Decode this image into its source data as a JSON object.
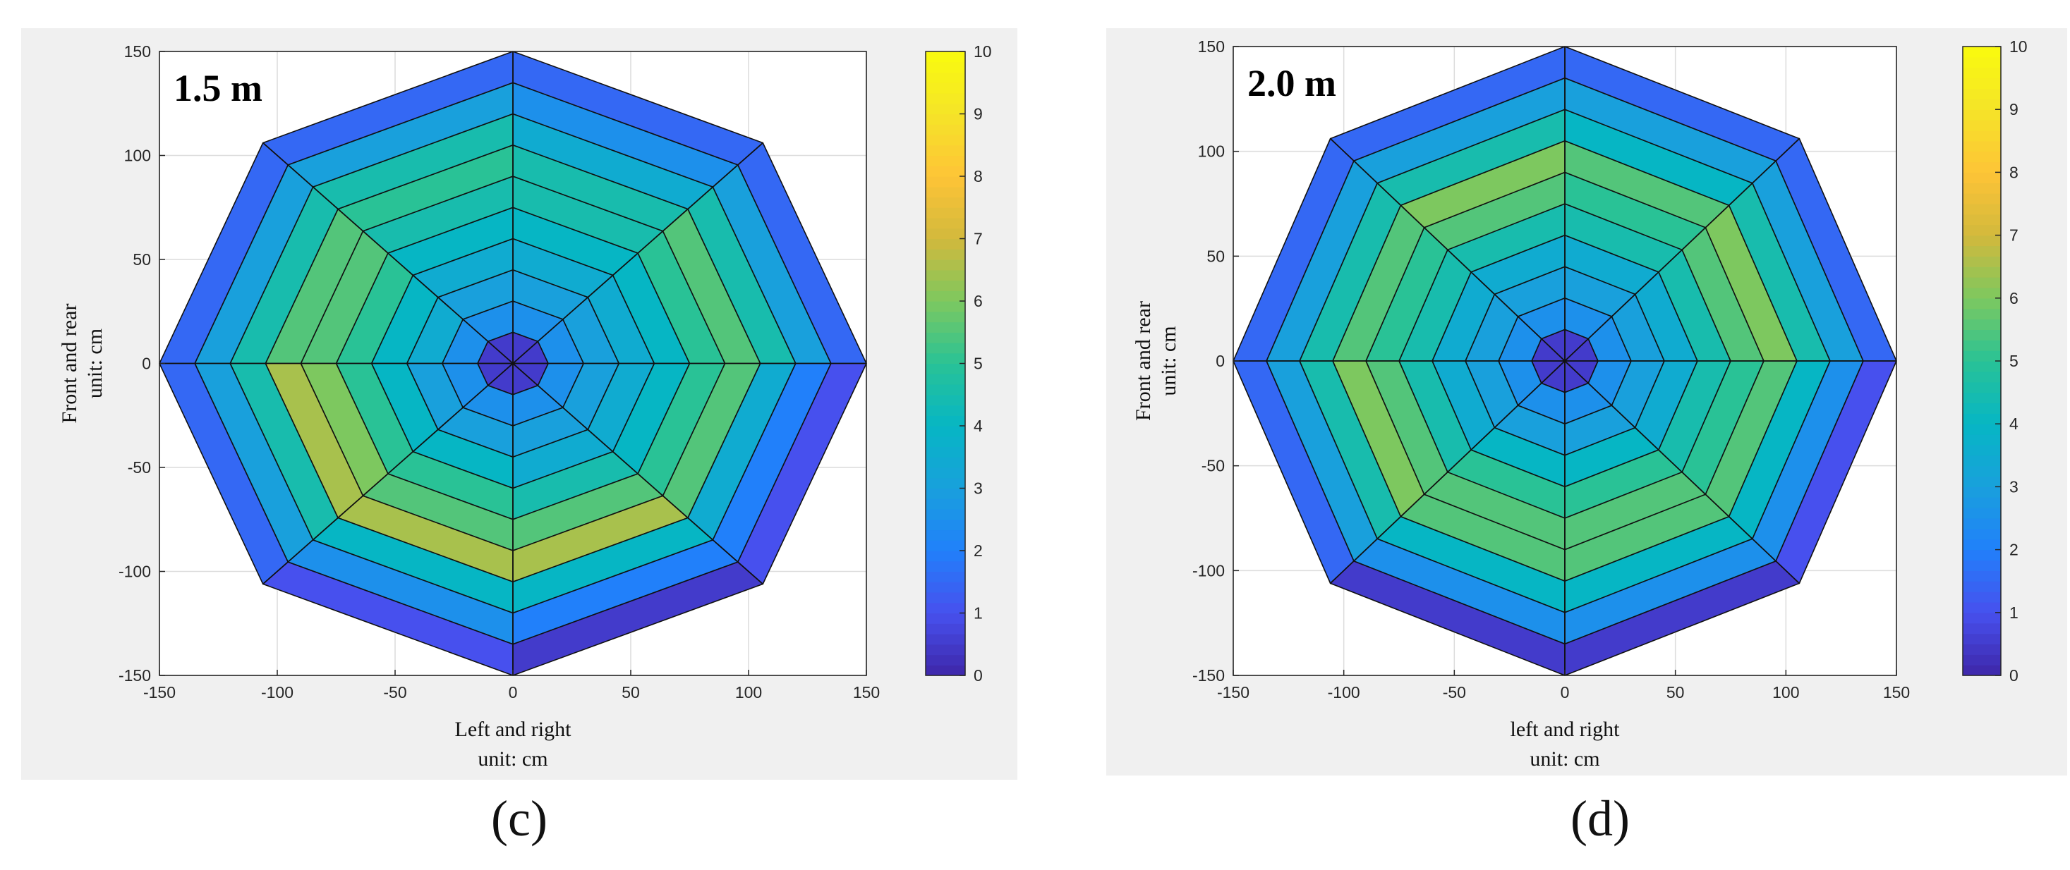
{
  "chart_data": [
    {
      "type": "polar-contour",
      "panel_label": "(c)",
      "annotation": "1.5 m",
      "xlabel_line1": "Left and right",
      "xlabel_line2": "unit: cm",
      "ylabel_line1": "Front and rear",
      "ylabel_line2": "unit: cm",
      "xlim": [
        -150,
        150
      ],
      "ylim": [
        -150,
        150
      ],
      "x_ticks": [
        -150,
        -100,
        -50,
        0,
        50,
        100,
        150
      ],
      "y_ticks": [
        -150,
        -100,
        -50,
        0,
        50,
        100,
        150
      ],
      "colorbar_range": [
        0,
        10
      ],
      "colorbar_ticks": [
        0,
        1,
        2,
        3,
        4,
        5,
        6,
        7,
        8,
        9,
        10
      ],
      "directions_deg": [
        0,
        45,
        90,
        135,
        180,
        225,
        270,
        315
      ],
      "ring_radii_cm": [
        0,
        15,
        30,
        45,
        60,
        75,
        90,
        105,
        120,
        135,
        150
      ],
      "values": [
        [
          0.5,
          2.5,
          3.0,
          3.5,
          4.0,
          5.0,
          5.5,
          4.5,
          3.0,
          1.5
        ],
        [
          0.5,
          2.5,
          3.0,
          3.5,
          4.0,
          4.5,
          4.5,
          3.5,
          2.5,
          1.5
        ],
        [
          0.5,
          2.5,
          3.0,
          3.5,
          4.0,
          4.5,
          5.0,
          4.5,
          3.0,
          1.5
        ],
        [
          0.5,
          2.5,
          3.5,
          4.0,
          5.0,
          5.5,
          5.5,
          4.5,
          3.0,
          1.5
        ],
        [
          0.5,
          2.5,
          3.0,
          4.0,
          5.0,
          6.0,
          6.5,
          4.5,
          3.0,
          1.5
        ],
        [
          0.5,
          2.5,
          3.0,
          4.0,
          5.0,
          5.5,
          6.5,
          4.0,
          2.5,
          1.0
        ],
        [
          0.5,
          2.5,
          3.0,
          3.5,
          4.5,
          5.5,
          6.5,
          4.0,
          2.0,
          0.5
        ],
        [
          0.5,
          2.5,
          3.0,
          3.5,
          4.0,
          5.0,
          5.5,
          3.5,
          2.0,
          1.0
        ]
      ]
    },
    {
      "type": "polar-contour",
      "panel_label": "(d)",
      "annotation": "2.0 m",
      "xlabel_line1": "left and right",
      "xlabel_line2": "unit: cm",
      "ylabel_line1": "Front and rear",
      "ylabel_line2": "unit: cm",
      "xlim": [
        -150,
        150
      ],
      "ylim": [
        -150,
        150
      ],
      "x_ticks": [
        -150,
        -100,
        -50,
        0,
        50,
        100,
        150
      ],
      "y_ticks": [
        -150,
        -100,
        -50,
        0,
        50,
        100,
        150
      ],
      "colorbar_range": [
        0,
        10
      ],
      "colorbar_ticks": [
        0,
        1,
        2,
        3,
        4,
        5,
        6,
        7,
        8,
        9,
        10
      ],
      "directions_deg": [
        0,
        45,
        90,
        135,
        180,
        225,
        270,
        315
      ],
      "ring_radii_cm": [
        0,
        15,
        30,
        45,
        60,
        75,
        90,
        105,
        120,
        135,
        150
      ],
      "values": [
        [
          0.5,
          2.5,
          3.0,
          3.5,
          4.5,
          5.5,
          6.0,
          4.5,
          3.0,
          1.5
        ],
        [
          0.5,
          2.5,
          3.0,
          3.5,
          4.5,
          5.0,
          5.5,
          4.0,
          3.0,
          1.5
        ],
        [
          0.5,
          2.5,
          3.0,
          3.5,
          4.5,
          5.5,
          6.0,
          4.5,
          3.0,
          1.5
        ],
        [
          0.5,
          2.5,
          3.0,
          3.5,
          4.5,
          5.0,
          5.5,
          4.5,
          3.0,
          1.5
        ],
        [
          0.5,
          2.5,
          3.0,
          3.5,
          4.5,
          5.5,
          6.0,
          4.5,
          3.0,
          1.5
        ],
        [
          0.5,
          2.5,
          3.0,
          4.0,
          5.0,
          5.5,
          5.5,
          4.0,
          2.5,
          0.5
        ],
        [
          0.5,
          2.5,
          3.0,
          4.0,
          5.0,
          5.5,
          5.5,
          4.0,
          2.5,
          0.5
        ],
        [
          0.5,
          2.5,
          3.0,
          3.5,
          4.5,
          5.0,
          5.5,
          4.0,
          2.5,
          1.0
        ]
      ]
    }
  ]
}
